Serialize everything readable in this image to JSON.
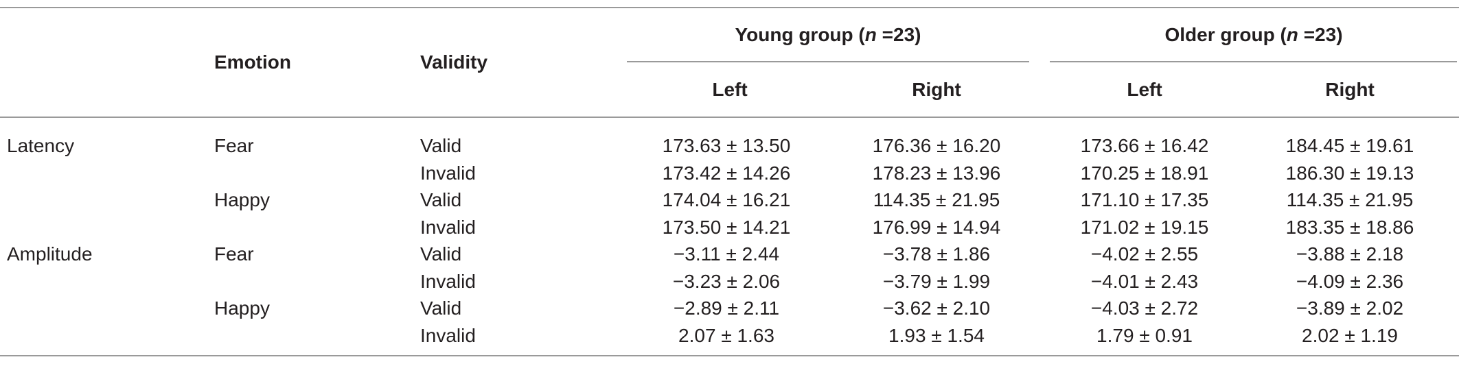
{
  "header": {
    "emotion": "Emotion",
    "validity": "Validity",
    "young_group": {
      "label": "Young group (",
      "n_var": "n",
      "n_eq": " =23)"
    },
    "older_group": {
      "label": "Older group (",
      "n_var": "n",
      "n_eq": " =23)"
    },
    "left": "Left",
    "right": "Right"
  },
  "rows": [
    {
      "measure": "Latency",
      "emotion": "Fear",
      "validity": "Valid",
      "young_left": "173.63 ± 13.50",
      "young_right": "176.36 ± 16.20",
      "older_left": "173.66 ± 16.42",
      "older_right": "184.45 ± 19.61"
    },
    {
      "measure": "",
      "emotion": "",
      "validity": "Invalid",
      "young_left": "173.42 ± 14.26",
      "young_right": "178.23 ± 13.96",
      "older_left": "170.25 ± 18.91",
      "older_right": "186.30 ± 19.13"
    },
    {
      "measure": "",
      "emotion": "Happy",
      "validity": "Valid",
      "young_left": "174.04 ± 16.21",
      "young_right": "114.35 ± 21.95",
      "older_left": "171.10 ± 17.35",
      "older_right": "114.35 ± 21.95"
    },
    {
      "measure": "",
      "emotion": "",
      "validity": "Invalid",
      "young_left": "173.50 ± 14.21",
      "young_right": "176.99 ± 14.94",
      "older_left": "171.02 ± 19.15",
      "older_right": "183.35 ± 18.86"
    },
    {
      "measure": "Amplitude",
      "emotion": "Fear",
      "validity": "Valid",
      "young_left": "−3.11 ± 2.44",
      "young_right": "−3.78 ± 1.86",
      "older_left": "−4.02 ± 2.55",
      "older_right": "−3.88 ± 2.18"
    },
    {
      "measure": "",
      "emotion": "",
      "validity": "Invalid",
      "young_left": "−3.23 ± 2.06",
      "young_right": "−3.79 ± 1.99",
      "older_left": "−4.01 ± 2.43",
      "older_right": "−4.09 ± 2.36"
    },
    {
      "measure": "",
      "emotion": "Happy",
      "validity": "Valid",
      "young_left": "−2.89 ± 2.11",
      "young_right": "−3.62 ± 2.10",
      "older_left": "−4.03 ± 2.72",
      "older_right": "−3.89 ± 2.02"
    },
    {
      "measure": "",
      "emotion": "",
      "validity": "Invalid",
      "young_left": "2.07 ± 1.63",
      "young_right": "1.93 ± 1.54",
      "older_left": "1.79 ± 0.91",
      "older_right": "2.02 ± 1.19"
    }
  ]
}
